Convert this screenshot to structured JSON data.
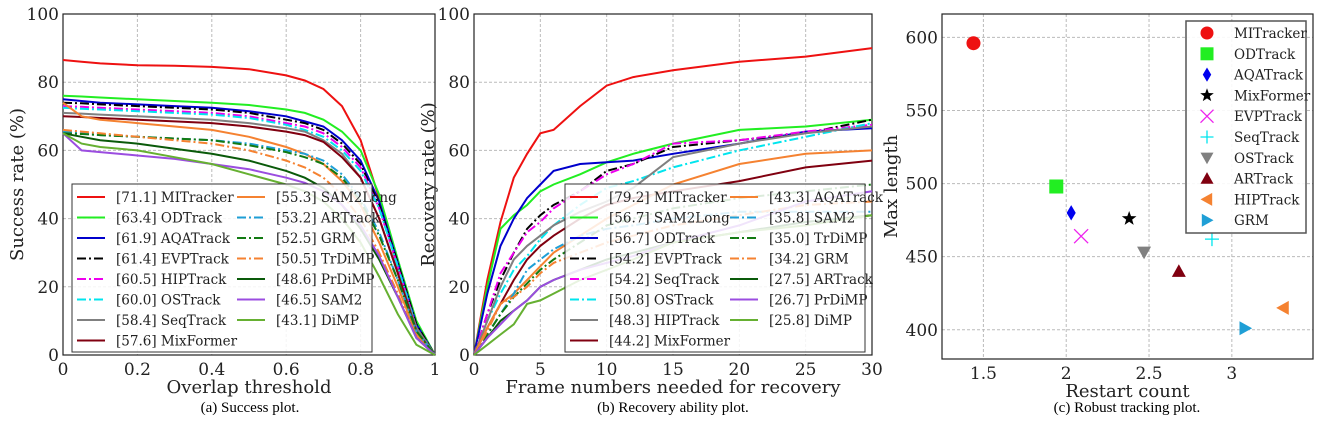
{
  "chart_data": [
    {
      "type": "line",
      "caption": "(a) Success plot.",
      "xlabel": "Overlap threshold",
      "ylabel": "Success rate (%)",
      "xlim": [
        0,
        1
      ],
      "ylim": [
        0,
        100
      ],
      "xticks": [
        "0",
        "0.2",
        "0.4",
        "0.6",
        "0.8",
        "1"
      ],
      "yticks": [
        "0",
        "20",
        "40",
        "60",
        "80",
        "100"
      ],
      "grid": true,
      "legend": "bottom-left",
      "x": [
        0,
        0.05,
        0.1,
        0.2,
        0.3,
        0.4,
        0.5,
        0.6,
        0.65,
        0.7,
        0.75,
        0.8,
        0.85,
        0.9,
        0.95,
        1
      ],
      "series": [
        {
          "name": "[71.1] MITracker",
          "color": "#ee1111",
          "style": "solid",
          "values": [
            86.5,
            86,
            85.5,
            85,
            84.8,
            84.5,
            83.8,
            82,
            80.5,
            78,
            73,
            63,
            46,
            25,
            8,
            0
          ]
        },
        {
          "name": "[63.4] ODTrack",
          "color": "#22ee22",
          "style": "solid",
          "values": [
            76,
            75.8,
            75.5,
            75,
            74.5,
            74,
            73.3,
            72,
            71,
            69,
            65.5,
            60,
            47,
            28,
            10,
            0
          ]
        },
        {
          "name": "[61.9] AQATrack",
          "color": "#0000cc",
          "style": "solid",
          "values": [
            75,
            74.5,
            74,
            73.5,
            73,
            72.5,
            71.5,
            70,
            68.5,
            67,
            63,
            57,
            45,
            27,
            9,
            0
          ]
        },
        {
          "name": "[61.4] EVPTrack",
          "color": "#000000",
          "style": "dashdot",
          "values": [
            74,
            73.8,
            73.5,
            73,
            72.5,
            72,
            71,
            69,
            68,
            66,
            62,
            56,
            44,
            27,
            9,
            0
          ]
        },
        {
          "name": "[60.5] HIPTrack",
          "color": "#ee00ee",
          "style": "dashdot",
          "values": [
            73,
            72.8,
            72.5,
            72,
            71.5,
            71,
            70,
            68,
            67,
            65,
            61,
            55,
            43,
            26,
            8,
            0
          ]
        },
        {
          "name": "[60.0] OSTrack",
          "color": "#00e5ee",
          "style": "dashdot",
          "values": [
            72.5,
            72.2,
            72,
            71.5,
            71,
            70.5,
            69.5,
            67.5,
            66,
            64,
            60,
            54,
            43,
            26,
            8,
            0
          ]
        },
        {
          "name": "[58.4] SeqTrack",
          "color": "#808080",
          "style": "solid",
          "values": [
            71,
            70.8,
            70.5,
            70,
            69.5,
            69,
            68,
            66.5,
            65.5,
            63,
            59,
            52,
            40,
            24,
            8,
            0
          ]
        },
        {
          "name": "[57.6] MixFormer",
          "color": "#800010",
          "style": "solid",
          "values": [
            70,
            69.8,
            69.5,
            69,
            68.5,
            68,
            67,
            65.5,
            64.5,
            62.5,
            58,
            52,
            40,
            24,
            7,
            0
          ]
        },
        {
          "name": "[55.3] SAM2Long",
          "color": "#f58231",
          "style": "solid",
          "values": [
            74,
            70,
            69,
            68,
            67,
            66,
            64,
            61,
            59,
            56,
            51,
            44,
            33,
            20,
            6,
            0
          ]
        },
        {
          "name": "[53.2] ARTrack",
          "color": "#1f9fd6",
          "style": "dashdot",
          "values": [
            65.5,
            65,
            64.5,
            64,
            63.5,
            63,
            62,
            60,
            59,
            57,
            53,
            46,
            36,
            22,
            7,
            0
          ]
        },
        {
          "name": "[52.5] GRM",
          "color": "#127a12",
          "style": "dashdot",
          "values": [
            65,
            64.8,
            64.5,
            64,
            63.5,
            63,
            61.5,
            59.5,
            58,
            56,
            52,
            45,
            35,
            22,
            7,
            0
          ]
        },
        {
          "name": "[50.5] TrDiMP",
          "color": "#f58231",
          "style": "dashdot",
          "values": [
            66,
            65.5,
            65,
            64,
            63,
            62,
            60,
            57,
            55,
            52,
            47,
            40,
            30,
            18,
            5,
            0
          ]
        },
        {
          "name": "[48.6] PrDiMP",
          "color": "#0a5a0a",
          "style": "solid",
          "values": [
            65,
            64,
            63,
            62,
            60.5,
            59,
            57,
            54,
            52,
            49,
            44,
            37,
            28,
            17,
            5,
            0
          ]
        },
        {
          "name": "[46.5] SAM2",
          "color": "#9b4de0",
          "style": "solid",
          "values": [
            65,
            60,
            59.5,
            58.5,
            57.5,
            56,
            54.5,
            52,
            50.5,
            48,
            44,
            38,
            29,
            17,
            5,
            0
          ]
        },
        {
          "name": "[43.1] DiMP",
          "color": "#66b032",
          "style": "solid",
          "values": [
            65,
            62,
            61,
            60,
            58,
            56,
            53,
            50,
            48,
            45,
            40,
            33,
            23,
            12,
            3,
            0
          ]
        }
      ]
    },
    {
      "type": "line",
      "caption": "(b) Recovery ability plot.",
      "xlabel": "Frame numbers needed for recovery",
      "ylabel": "Recovery rate (%)",
      "xlim": [
        0,
        30
      ],
      "ylim": [
        0,
        100
      ],
      "xticks": [
        "0",
        "5",
        "10",
        "15",
        "20",
        "25",
        "30"
      ],
      "yticks": [
        "0",
        "20",
        "40",
        "60",
        "80",
        "100"
      ],
      "grid": true,
      "legend": "bottom-right",
      "x": [
        0,
        1,
        2,
        3,
        4,
        5,
        6,
        8,
        10,
        12,
        15,
        20,
        25,
        30
      ],
      "series": [
        {
          "name": "[79.2] MITracker",
          "color": "#ee1111",
          "style": "solid",
          "values": [
            0,
            22,
            39,
            52,
            59,
            65,
            66,
            73,
            79,
            81.5,
            83.5,
            86,
            87.5,
            90
          ]
        },
        {
          "name": "[56.7] SAM2Long",
          "color": "#22ee22",
          "style": "solid",
          "values": [
            0,
            20,
            37,
            41,
            44,
            48,
            50,
            53,
            56.5,
            59,
            62,
            66,
            67,
            69
          ]
        },
        {
          "name": "[56.7] ODTrack",
          "color": "#0000cc",
          "style": "solid",
          "values": [
            0,
            18,
            32,
            40,
            46,
            50,
            54,
            56,
            56.5,
            57,
            59,
            62,
            65.5,
            66.5
          ]
        },
        {
          "name": "[54.2] EVPTrack",
          "color": "#000000",
          "style": "dashdot",
          "values": [
            0,
            12,
            22,
            30,
            37,
            41,
            44,
            48,
            54,
            56,
            61,
            63,
            65,
            69
          ]
        },
        {
          "name": "[54.2] SeqTrack",
          "color": "#ee00ee",
          "style": "dashdot",
          "values": [
            0,
            12,
            24,
            30,
            36,
            39,
            43,
            48,
            53,
            56,
            62,
            63,
            65.5,
            67.5
          ]
        },
        {
          "name": "[50.8] OSTrack",
          "color": "#00e5ee",
          "style": "dashdot",
          "values": [
            0,
            10,
            18,
            25,
            29,
            34,
            38,
            44,
            49,
            51,
            55,
            60,
            64,
            68
          ]
        },
        {
          "name": "[48.3] HIPTrack",
          "color": "#808080",
          "style": "solid",
          "values": [
            0,
            10,
            20,
            28,
            32,
            35,
            38,
            42,
            45,
            49,
            58,
            62,
            65,
            67
          ]
        },
        {
          "name": "[44.2] MixFormer",
          "color": "#800010",
          "style": "solid",
          "values": [
            0,
            8,
            15,
            22,
            28,
            32,
            35,
            40,
            44,
            46,
            48,
            51,
            55,
            57
          ]
        },
        {
          "name": "[43.3] AQATrack",
          "color": "#f58231",
          "style": "solid",
          "values": [
            0,
            8,
            15,
            18,
            22,
            26,
            30,
            35,
            40,
            44,
            50,
            56,
            59,
            60
          ]
        },
        {
          "name": "[35.8] SAM2",
          "color": "#1f9fd6",
          "style": "dashdot",
          "values": [
            0,
            6,
            12,
            18,
            25,
            28,
            31,
            35,
            37,
            38,
            40,
            42,
            42,
            42
          ]
        },
        {
          "name": "[35.0] TrDiMP",
          "color": "#127a12",
          "style": "dashdot",
          "values": [
            0,
            6,
            12,
            17,
            21,
            25,
            28,
            33,
            38,
            40,
            43,
            46,
            48,
            50
          ]
        },
        {
          "name": "[34.2] GRM",
          "color": "#f58231",
          "style": "dashdot",
          "values": [
            0,
            7,
            15,
            17,
            20,
            24,
            27,
            30,
            33,
            35,
            38,
            41,
            44,
            45
          ]
        },
        {
          "name": "[27.5] ARTrack",
          "color": "#0a5a0a",
          "style": "solid",
          "values": [
            0,
            5,
            10,
            13,
            16,
            20,
            22,
            25,
            28,
            30,
            33,
            36,
            39,
            41
          ]
        },
        {
          "name": "[26.7] PrDiMP",
          "color": "#9b4de0",
          "style": "solid",
          "values": [
            0,
            5,
            9,
            13,
            16,
            20,
            22,
            25,
            27,
            29,
            33,
            38,
            45,
            48
          ]
        },
        {
          "name": "[25.8] DiMP",
          "color": "#66b032",
          "style": "solid",
          "values": [
            0,
            3,
            6,
            9,
            15,
            16,
            18,
            22,
            25,
            28,
            33,
            36,
            38,
            41
          ]
        }
      ]
    },
    {
      "type": "scatter",
      "caption": "(c) Robust tracking plot.",
      "xlabel": "Restart count",
      "ylabel": "Max length",
      "xlim": [
        1.25,
        3.49
      ],
      "ylim": [
        380,
        616
      ],
      "xticks": [
        "1.5",
        "2",
        "2.5",
        "3"
      ],
      "yticks": [
        "400",
        "450",
        "500",
        "550",
        "600"
      ],
      "grid": true,
      "legend": "top-right",
      "points": [
        {
          "name": "MITracker",
          "x": 1.44,
          "y": 596,
          "color": "#ee1111",
          "marker": "circle"
        },
        {
          "name": "ODTrack",
          "x": 1.94,
          "y": 498,
          "color": "#22ee22",
          "marker": "square"
        },
        {
          "name": "AQATrack",
          "x": 2.03,
          "y": 480,
          "color": "#0000ee",
          "marker": "diamond"
        },
        {
          "name": "MixFormer",
          "x": 2.38,
          "y": 476,
          "color": "#000000",
          "marker": "star"
        },
        {
          "name": "EVPTrack",
          "x": 2.09,
          "y": 464,
          "color": "#ee22ee",
          "marker": "x"
        },
        {
          "name": "SeqTrack",
          "x": 2.88,
          "y": 462,
          "color": "#00e5ee",
          "marker": "plus"
        },
        {
          "name": "OSTrack",
          "x": 2.47,
          "y": 453,
          "color": "#808080",
          "marker": "triangle-down"
        },
        {
          "name": "ARTrack",
          "x": 2.68,
          "y": 440,
          "color": "#800010",
          "marker": "triangle-up"
        },
        {
          "name": "HIPTrack",
          "x": 3.31,
          "y": 415,
          "color": "#f58231",
          "marker": "triangle-left"
        },
        {
          "name": "GRM",
          "x": 3.08,
          "y": 401,
          "color": "#1f9fd6",
          "marker": "triangle-right"
        }
      ]
    }
  ]
}
